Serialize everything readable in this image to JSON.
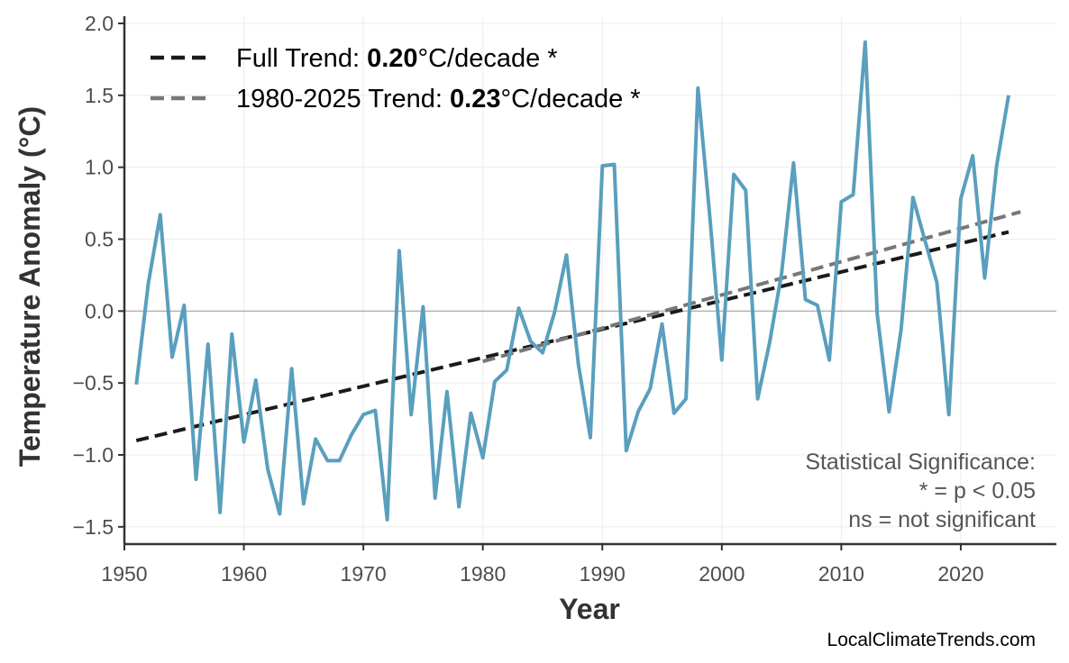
{
  "chart_data": {
    "type": "line",
    "title": "",
    "xlabel": "Year",
    "ylabel": "Temperature Anomaly (°C)",
    "xlim": [
      1950,
      2028
    ],
    "ylim": [
      -1.62,
      2.05
    ],
    "x_ticks": [
      1950,
      1960,
      1970,
      1980,
      1990,
      2000,
      2010,
      2020
    ],
    "y_ticks": [
      -1.5,
      -1.0,
      -0.5,
      0.0,
      0.5,
      1.0,
      1.5,
      2.0
    ],
    "y_tick_labels": [
      "−1.5",
      "−1.0",
      "−0.5",
      "0.0",
      "0.5",
      "1.0",
      "1.5",
      "2.0"
    ],
    "grid": true,
    "zero_line": true,
    "series": [
      {
        "color": "#5a9fbd",
        "x": [
          1951,
          1952,
          1953,
          1954,
          1955,
          1956,
          1957,
          1958,
          1959,
          1960,
          1961,
          1962,
          1963,
          1964,
          1965,
          1966,
          1967,
          1968,
          1969,
          1970,
          1971,
          1972,
          1973,
          1974,
          1975,
          1976,
          1977,
          1978,
          1979,
          1980,
          1981,
          1982,
          1983,
          1984,
          1985,
          1986,
          1987,
          1988,
          1989,
          1990,
          1991,
          1992,
          1993,
          1994,
          1995,
          1996,
          1997,
          1998,
          1999,
          2000,
          2001,
          2002,
          2003,
          2004,
          2005,
          2006,
          2007,
          2008,
          2009,
          2010,
          2011,
          2012,
          2013,
          2014,
          2015,
          2016,
          2017,
          2018,
          2019,
          2020,
          2021,
          2022,
          2023,
          2024
        ],
        "y": [
          -0.51,
          0.19,
          0.67,
          -0.32,
          0.04,
          -1.17,
          -0.23,
          -1.4,
          -0.16,
          -0.91,
          -0.48,
          -1.1,
          -1.41,
          -0.4,
          -1.34,
          -0.89,
          -1.04,
          -1.04,
          -0.86,
          -0.72,
          -0.69,
          -1.45,
          0.42,
          -0.72,
          0.03,
          -1.3,
          -0.56,
          -1.36,
          -0.71,
          -1.02,
          -0.49,
          -0.41,
          0.02,
          -0.21,
          -0.29,
          -0.01,
          0.39,
          -0.37,
          -0.88,
          1.01,
          1.02,
          -0.97,
          -0.7,
          -0.54,
          -0.09,
          -0.71,
          -0.61,
          1.55,
          0.65,
          -0.34,
          0.95,
          0.84,
          -0.61,
          -0.22,
          0.26,
          1.03,
          0.08,
          0.04,
          -0.34,
          0.76,
          0.81,
          1.87,
          -0.02,
          -0.7,
          -0.13,
          0.79,
          0.49,
          0.2,
          -0.72,
          0.78,
          1.08,
          0.23,
          1.01,
          1.5
        ]
      }
    ],
    "trends": [
      {
        "label_prefix": "Full Trend: ",
        "value": "0.20",
        "label_suffix": "°C/decade *",
        "x": [
          1951,
          2024
        ],
        "y": [
          -0.9,
          0.55
        ],
        "color": "#1a1a1a"
      },
      {
        "label_prefix": "1980-2025 Trend: ",
        "value": "0.23",
        "label_suffix": "°C/decade *",
        "x": [
          1980,
          2025
        ],
        "y": [
          -0.35,
          0.69
        ],
        "color": "#777777"
      }
    ],
    "legend_position": "top-left",
    "annotation": [
      "Statistical Significance:",
      "* = p < 0.05",
      "ns = not significant"
    ],
    "credit": "LocalClimateTrends.com"
  }
}
